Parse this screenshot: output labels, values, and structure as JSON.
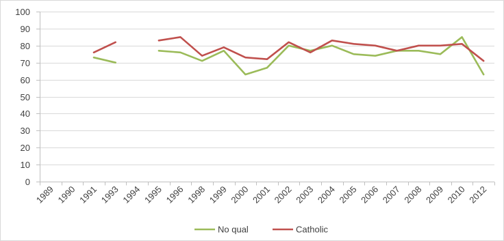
{
  "chart_data": {
    "type": "line",
    "title": "",
    "xlabel": "",
    "ylabel": "",
    "ylim": [
      0,
      100
    ],
    "yticks": [
      0,
      10,
      20,
      30,
      40,
      50,
      60,
      70,
      80,
      90,
      100
    ],
    "grid": true,
    "legend_position": "bottom",
    "categories": [
      "1989",
      "1990",
      "1991",
      "1993",
      "1994",
      "1995",
      "1996",
      "1998",
      "1999",
      "2000",
      "2001",
      "2002",
      "2003",
      "2004",
      "2005",
      "2006",
      "2007",
      "2008",
      "2009",
      "2010",
      "2012"
    ],
    "series": [
      {
        "name": "No qual",
        "color": "#9bbb59",
        "values": [
          null,
          null,
          73,
          70,
          null,
          77,
          76,
          71,
          77,
          63,
          67,
          80,
          77,
          80,
          75,
          74,
          77,
          77,
          75,
          85,
          63
        ]
      },
      {
        "name": "Catholic",
        "color": "#c0504d",
        "values": [
          null,
          null,
          76,
          82,
          null,
          83,
          85,
          74,
          79,
          73,
          72,
          82,
          76,
          83,
          81,
          80,
          77,
          80,
          80,
          81,
          71
        ]
      }
    ]
  }
}
